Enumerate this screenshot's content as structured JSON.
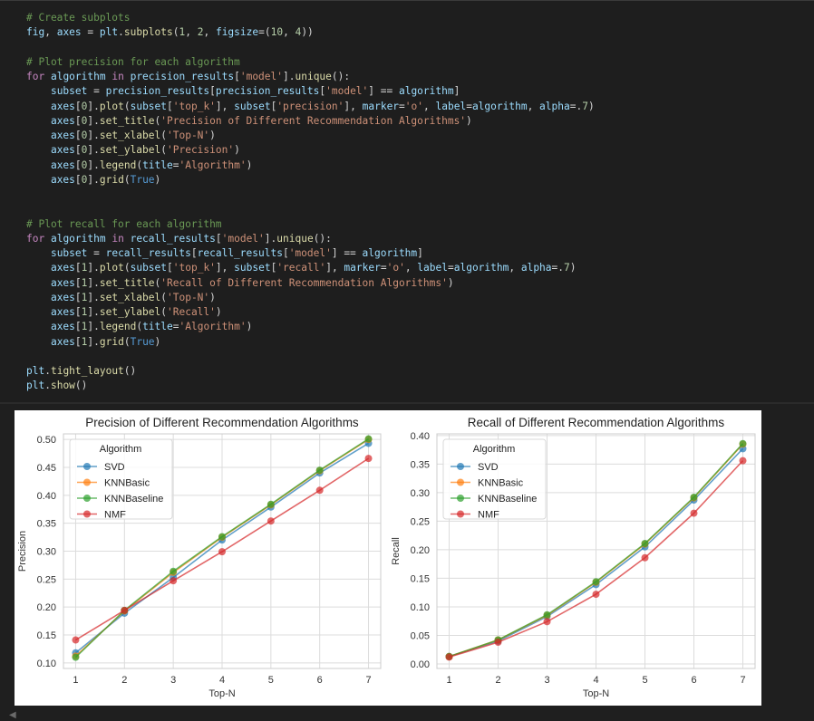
{
  "code_lines": [
    [
      [
        "c",
        "# Create subplots"
      ]
    ],
    [
      [
        "v",
        "fig"
      ],
      [
        "p",
        ", "
      ],
      [
        "v",
        "axes"
      ],
      [
        "p",
        " = "
      ],
      [
        "v",
        "plt"
      ],
      [
        "p",
        "."
      ],
      [
        "f",
        "subplots"
      ],
      [
        "p",
        "("
      ],
      [
        "n",
        "1"
      ],
      [
        "p",
        ", "
      ],
      [
        "n",
        "2"
      ],
      [
        "p",
        ", "
      ],
      [
        "v",
        "figsize"
      ],
      [
        "p",
        "=("
      ],
      [
        "n",
        "10"
      ],
      [
        "p",
        ", "
      ],
      [
        "n",
        "4"
      ],
      [
        "p",
        "))"
      ]
    ],
    [],
    [
      [
        "c",
        "# Plot precision for each algorithm"
      ]
    ],
    [
      [
        "k",
        "for"
      ],
      [
        "p",
        " "
      ],
      [
        "v",
        "algorithm"
      ],
      [
        "p",
        " "
      ],
      [
        "k",
        "in"
      ],
      [
        "p",
        " "
      ],
      [
        "v",
        "precision_results"
      ],
      [
        "p",
        "["
      ],
      [
        "s",
        "'model'"
      ],
      [
        "p",
        "]."
      ],
      [
        "f",
        "unique"
      ],
      [
        "p",
        "():"
      ]
    ],
    [
      [
        "p",
        "    "
      ],
      [
        "v",
        "subset"
      ],
      [
        "p",
        " = "
      ],
      [
        "v",
        "precision_results"
      ],
      [
        "p",
        "["
      ],
      [
        "v",
        "precision_results"
      ],
      [
        "p",
        "["
      ],
      [
        "s",
        "'model'"
      ],
      [
        "p",
        "] == "
      ],
      [
        "v",
        "algorithm"
      ],
      [
        "p",
        "]"
      ]
    ],
    [
      [
        "p",
        "    "
      ],
      [
        "v",
        "axes"
      ],
      [
        "p",
        "["
      ],
      [
        "n",
        "0"
      ],
      [
        "p",
        "]."
      ],
      [
        "f",
        "plot"
      ],
      [
        "p",
        "("
      ],
      [
        "v",
        "subset"
      ],
      [
        "p",
        "["
      ],
      [
        "s",
        "'top_k'"
      ],
      [
        "p",
        "], "
      ],
      [
        "v",
        "subset"
      ],
      [
        "p",
        "["
      ],
      [
        "s",
        "'precision'"
      ],
      [
        "p",
        "], "
      ],
      [
        "v",
        "marker"
      ],
      [
        "p",
        "="
      ],
      [
        "s",
        "'o'"
      ],
      [
        "p",
        ", "
      ],
      [
        "v",
        "label"
      ],
      [
        "p",
        "="
      ],
      [
        "v",
        "algorithm"
      ],
      [
        "p",
        ", "
      ],
      [
        "v",
        "alpha"
      ],
      [
        "p",
        "=."
      ],
      [
        "n",
        "7"
      ],
      [
        "p",
        ")"
      ]
    ],
    [
      [
        "p",
        "    "
      ],
      [
        "v",
        "axes"
      ],
      [
        "p",
        "["
      ],
      [
        "n",
        "0"
      ],
      [
        "p",
        "]."
      ],
      [
        "f",
        "set_title"
      ],
      [
        "p",
        "("
      ],
      [
        "s",
        "'Precision of Different Recommendation Algorithms'"
      ],
      [
        "p",
        ")"
      ]
    ],
    [
      [
        "p",
        "    "
      ],
      [
        "v",
        "axes"
      ],
      [
        "p",
        "["
      ],
      [
        "n",
        "0"
      ],
      [
        "p",
        "]."
      ],
      [
        "f",
        "set_xlabel"
      ],
      [
        "p",
        "("
      ],
      [
        "s",
        "'Top-N'"
      ],
      [
        "p",
        ")"
      ]
    ],
    [
      [
        "p",
        "    "
      ],
      [
        "v",
        "axes"
      ],
      [
        "p",
        "["
      ],
      [
        "n",
        "0"
      ],
      [
        "p",
        "]."
      ],
      [
        "f",
        "set_ylabel"
      ],
      [
        "p",
        "("
      ],
      [
        "s",
        "'Precision'"
      ],
      [
        "p",
        ")"
      ]
    ],
    [
      [
        "p",
        "    "
      ],
      [
        "v",
        "axes"
      ],
      [
        "p",
        "["
      ],
      [
        "n",
        "0"
      ],
      [
        "p",
        "]."
      ],
      [
        "f",
        "legend"
      ],
      [
        "p",
        "("
      ],
      [
        "v",
        "title"
      ],
      [
        "p",
        "="
      ],
      [
        "s",
        "'Algorithm'"
      ],
      [
        "p",
        ")"
      ]
    ],
    [
      [
        "p",
        "    "
      ],
      [
        "v",
        "axes"
      ],
      [
        "p",
        "["
      ],
      [
        "n",
        "0"
      ],
      [
        "p",
        "]."
      ],
      [
        "f",
        "grid"
      ],
      [
        "p",
        "("
      ],
      [
        "b",
        "True"
      ],
      [
        "p",
        ")"
      ]
    ],
    [],
    [],
    [
      [
        "c",
        "# Plot recall for each algorithm"
      ]
    ],
    [
      [
        "k",
        "for"
      ],
      [
        "p",
        " "
      ],
      [
        "v",
        "algorithm"
      ],
      [
        "p",
        " "
      ],
      [
        "k",
        "in"
      ],
      [
        "p",
        " "
      ],
      [
        "v",
        "recall_results"
      ],
      [
        "p",
        "["
      ],
      [
        "s",
        "'model'"
      ],
      [
        "p",
        "]."
      ],
      [
        "f",
        "unique"
      ],
      [
        "p",
        "():"
      ]
    ],
    [
      [
        "p",
        "    "
      ],
      [
        "v",
        "subset"
      ],
      [
        "p",
        " = "
      ],
      [
        "v",
        "recall_results"
      ],
      [
        "p",
        "["
      ],
      [
        "v",
        "recall_results"
      ],
      [
        "p",
        "["
      ],
      [
        "s",
        "'model'"
      ],
      [
        "p",
        "] == "
      ],
      [
        "v",
        "algorithm"
      ],
      [
        "p",
        "]"
      ]
    ],
    [
      [
        "p",
        "    "
      ],
      [
        "v",
        "axes"
      ],
      [
        "p",
        "["
      ],
      [
        "n",
        "1"
      ],
      [
        "p",
        "]."
      ],
      [
        "f",
        "plot"
      ],
      [
        "p",
        "("
      ],
      [
        "v",
        "subset"
      ],
      [
        "p",
        "["
      ],
      [
        "s",
        "'top_k'"
      ],
      [
        "p",
        "], "
      ],
      [
        "v",
        "subset"
      ],
      [
        "p",
        "["
      ],
      [
        "s",
        "'recall'"
      ],
      [
        "p",
        "], "
      ],
      [
        "v",
        "marker"
      ],
      [
        "p",
        "="
      ],
      [
        "s",
        "'o'"
      ],
      [
        "p",
        ", "
      ],
      [
        "v",
        "label"
      ],
      [
        "p",
        "="
      ],
      [
        "v",
        "algorithm"
      ],
      [
        "p",
        ", "
      ],
      [
        "v",
        "alpha"
      ],
      [
        "p",
        "=."
      ],
      [
        "n",
        "7"
      ],
      [
        "p",
        ")"
      ]
    ],
    [
      [
        "p",
        "    "
      ],
      [
        "v",
        "axes"
      ],
      [
        "p",
        "["
      ],
      [
        "n",
        "1"
      ],
      [
        "p",
        "]."
      ],
      [
        "f",
        "set_title"
      ],
      [
        "p",
        "("
      ],
      [
        "s",
        "'Recall of Different Recommendation Algorithms'"
      ],
      [
        "p",
        ")"
      ]
    ],
    [
      [
        "p",
        "    "
      ],
      [
        "v",
        "axes"
      ],
      [
        "p",
        "["
      ],
      [
        "n",
        "1"
      ],
      [
        "p",
        "]."
      ],
      [
        "f",
        "set_xlabel"
      ],
      [
        "p",
        "("
      ],
      [
        "s",
        "'Top-N'"
      ],
      [
        "p",
        ")"
      ]
    ],
    [
      [
        "p",
        "    "
      ],
      [
        "v",
        "axes"
      ],
      [
        "p",
        "["
      ],
      [
        "n",
        "1"
      ],
      [
        "p",
        "]."
      ],
      [
        "f",
        "set_ylabel"
      ],
      [
        "p",
        "("
      ],
      [
        "s",
        "'Recall'"
      ],
      [
        "p",
        ")"
      ]
    ],
    [
      [
        "p",
        "    "
      ],
      [
        "v",
        "axes"
      ],
      [
        "p",
        "["
      ],
      [
        "n",
        "1"
      ],
      [
        "p",
        "]."
      ],
      [
        "f",
        "legend"
      ],
      [
        "p",
        "("
      ],
      [
        "v",
        "title"
      ],
      [
        "p",
        "="
      ],
      [
        "s",
        "'Algorithm'"
      ],
      [
        "p",
        ")"
      ]
    ],
    [
      [
        "p",
        "    "
      ],
      [
        "v",
        "axes"
      ],
      [
        "p",
        "["
      ],
      [
        "n",
        "1"
      ],
      [
        "p",
        "]."
      ],
      [
        "f",
        "grid"
      ],
      [
        "p",
        "("
      ],
      [
        "b",
        "True"
      ],
      [
        "p",
        ")"
      ]
    ],
    [],
    [
      [
        "v",
        "plt"
      ],
      [
        "p",
        "."
      ],
      [
        "f",
        "tight_layout"
      ],
      [
        "p",
        "()"
      ]
    ],
    [
      [
        "v",
        "plt"
      ],
      [
        "p",
        "."
      ],
      [
        "f",
        "show"
      ],
      [
        "p",
        "()"
      ]
    ]
  ],
  "chart_data": [
    {
      "type": "line",
      "title": "Precision of Different Recommendation Algorithms",
      "xlabel": "Top-N",
      "ylabel": "Precision",
      "x": [
        1,
        2,
        3,
        4,
        5,
        6,
        7
      ],
      "xlim": [
        0.75,
        7.25
      ],
      "ylim": [
        0.09,
        0.51
      ],
      "yticks": [
        "0.10",
        "0.15",
        "0.20",
        "0.25",
        "0.30",
        "0.35",
        "0.40",
        "0.45",
        "0.50"
      ],
      "ytick_values": [
        0.1,
        0.15,
        0.2,
        0.25,
        0.3,
        0.35,
        0.4,
        0.45,
        0.5
      ],
      "grid": true,
      "legend": {
        "title": "Algorithm",
        "position": "top-left"
      },
      "series": [
        {
          "name": "SVD",
          "color": "#1f77b4",
          "values": [
            0.118,
            0.189,
            0.253,
            0.32,
            0.379,
            0.44,
            0.493
          ]
        },
        {
          "name": "KNNBasic",
          "color": "#ff7f0e",
          "values": [
            0.112,
            0.193,
            0.262,
            0.325,
            0.383,
            0.444,
            0.5
          ]
        },
        {
          "name": "KNNBaseline",
          "color": "#2ca02c",
          "values": [
            0.11,
            0.194,
            0.264,
            0.326,
            0.384,
            0.445,
            0.501
          ]
        },
        {
          "name": "NMF",
          "color": "#d62728",
          "values": [
            0.141,
            0.194,
            0.247,
            0.299,
            0.354,
            0.409,
            0.466
          ]
        }
      ]
    },
    {
      "type": "line",
      "title": "Recall of Different Recommendation Algorithms",
      "xlabel": "Top-N",
      "ylabel": "Recall",
      "x": [
        1,
        2,
        3,
        4,
        5,
        6,
        7
      ],
      "xlim": [
        0.75,
        7.25
      ],
      "ylim": [
        -0.008,
        0.403
      ],
      "yticks": [
        "0.00",
        "0.05",
        "0.10",
        "0.15",
        "0.20",
        "0.25",
        "0.30",
        "0.35",
        "0.40"
      ],
      "ytick_values": [
        0.0,
        0.05,
        0.1,
        0.15,
        0.2,
        0.25,
        0.3,
        0.35,
        0.4
      ],
      "grid": true,
      "legend": {
        "title": "Algorithm",
        "position": "top-left"
      },
      "series": [
        {
          "name": "SVD",
          "color": "#1f77b4",
          "values": [
            0.013,
            0.04,
            0.083,
            0.139,
            0.205,
            0.287,
            0.377
          ]
        },
        {
          "name": "KNNBasic",
          "color": "#ff7f0e",
          "values": [
            0.013,
            0.042,
            0.085,
            0.143,
            0.21,
            0.291,
            0.385
          ]
        },
        {
          "name": "KNNBaseline",
          "color": "#2ca02c",
          "values": [
            0.013,
            0.042,
            0.086,
            0.144,
            0.211,
            0.292,
            0.386
          ]
        },
        {
          "name": "NMF",
          "color": "#d62728",
          "values": [
            0.012,
            0.038,
            0.074,
            0.122,
            0.186,
            0.264,
            0.356
          ]
        }
      ]
    }
  ]
}
